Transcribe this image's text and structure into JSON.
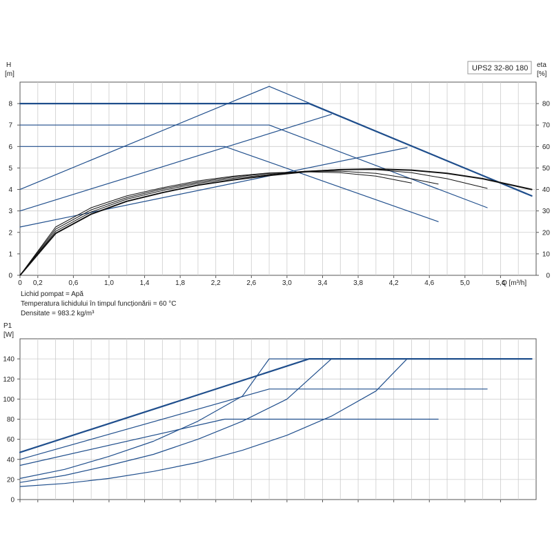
{
  "model": "UPS2 32-80 180",
  "fluid_info": [
    "Lichid pompat = Apă",
    "Temperatura lichidului în timpul funcționării = 60 °C",
    "Densitate = 983.2 kg/m³"
  ],
  "colors": {
    "blue": "#1f4e8c",
    "black": "#111111",
    "grid": "#cccccc",
    "axis": "#555555"
  },
  "chart_data": [
    {
      "type": "line",
      "title": "",
      "xlabel": "Q [m³/h]",
      "ylabel": "H [m]",
      "ylabel_parts": [
        "H",
        "[m]"
      ],
      "y2label": "eta [%]",
      "y2label_parts": [
        "eta",
        "[%]"
      ],
      "xlim": [
        0,
        5.8
      ],
      "ylim": [
        0,
        9
      ],
      "y2lim": [
        0,
        90
      ],
      "x_ticks": [
        "0",
        "0,2",
        "0,6",
        "1,0",
        "1,4",
        "1,8",
        "2,2",
        "2,6",
        "3,0",
        "3,4",
        "3,8",
        "4,2",
        "4,6",
        "5,0",
        "5,4"
      ],
      "x_tick_values": [
        0,
        0.2,
        0.6,
        1.0,
        1.4,
        1.8,
        2.2,
        2.6,
        3.0,
        3.4,
        3.8,
        4.2,
        4.6,
        5.0,
        5.4
      ],
      "y_ticks": [
        0,
        1,
        2,
        3,
        4,
        5,
        6,
        7,
        8
      ],
      "y2_ticks": [
        0,
        10,
        20,
        30,
        40,
        50,
        60,
        70,
        80
      ],
      "grid": true,
      "series": [
        {
          "color": "blue",
          "width": 2.2,
          "x": [
            0,
            3.25,
            5.75
          ],
          "y": [
            8,
            8,
            3.7
          ]
        },
        {
          "color": "blue",
          "width": 1.2,
          "x": [
            0,
            2.8,
            5.25
          ],
          "y": [
            7,
            7,
            3.15
          ]
        },
        {
          "color": "blue",
          "width": 1.2,
          "x": [
            0,
            2.3,
            4.7
          ],
          "y": [
            6,
            6,
            2.5
          ]
        },
        {
          "color": "blue",
          "width": 1.2,
          "x": [
            0,
            2.8,
            5.75
          ],
          "y": [
            4,
            8.8,
            3.7
          ]
        },
        {
          "color": "blue",
          "width": 1.2,
          "x": [
            0,
            3.5
          ],
          "y": [
            3,
            7.5
          ]
        },
        {
          "color": "blue",
          "width": 1.2,
          "x": [
            0,
            4.35
          ],
          "y": [
            2.25,
            5.95
          ]
        },
        {
          "color": "black",
          "width": 2.0,
          "x": [
            0,
            0.4,
            0.8,
            1.2,
            1.6,
            2.0,
            2.4,
            2.8,
            3.2,
            3.6,
            4.0,
            4.4,
            4.8,
            5.2,
            5.75
          ],
          "y": [
            0,
            1.95,
            2.85,
            3.45,
            3.85,
            4.2,
            4.45,
            4.65,
            4.82,
            4.92,
            4.95,
            4.9,
            4.75,
            4.5,
            4.0
          ]
        },
        {
          "color": "black",
          "width": 1.0,
          "x": [
            0,
            0.4,
            0.8,
            1.2,
            1.6,
            2.0,
            2.4,
            2.8,
            3.2,
            3.6,
            4.0,
            4.4,
            4.8,
            5.25
          ],
          "y": [
            0,
            2.05,
            2.95,
            3.55,
            3.95,
            4.28,
            4.52,
            4.7,
            4.85,
            4.93,
            4.92,
            4.78,
            4.5,
            4.05
          ]
        },
        {
          "color": "black",
          "width": 1.0,
          "x": [
            0,
            0.4,
            0.8,
            1.2,
            1.6,
            2.0,
            2.4,
            2.8,
            3.2,
            3.6,
            4.0,
            4.4,
            4.7
          ],
          "y": [
            0,
            2.15,
            3.05,
            3.62,
            4.02,
            4.34,
            4.58,
            4.75,
            4.84,
            4.85,
            4.75,
            4.5,
            4.25
          ]
        },
        {
          "color": "black",
          "width": 1.0,
          "x": [
            0,
            0.4,
            0.8,
            1.2,
            1.6,
            2.0,
            2.4,
            2.8,
            3.2,
            3.6,
            4.0,
            4.4
          ],
          "y": [
            0,
            2.25,
            3.15,
            3.7,
            4.08,
            4.4,
            4.62,
            4.77,
            4.82,
            4.78,
            4.62,
            4.3
          ]
        }
      ]
    },
    {
      "type": "line",
      "title": "",
      "xlabel": "",
      "ylabel": "P1 [W]",
      "ylabel_parts": [
        "P1",
        "[W]"
      ],
      "xlim": [
        0,
        5.8
      ],
      "ylim": [
        0,
        160
      ],
      "x_tick_values": [
        0,
        0.2,
        0.6,
        1.0,
        1.4,
        1.8,
        2.2,
        2.6,
        3.0,
        3.4,
        3.8,
        4.2,
        4.6,
        5.0,
        5.4
      ],
      "y_ticks": [
        0,
        20,
        40,
        60,
        80,
        100,
        120,
        140
      ],
      "grid": true,
      "series": [
        {
          "color": "blue",
          "width": 2.2,
          "x": [
            0,
            3.25,
            5.75
          ],
          "y": [
            47,
            140,
            140
          ]
        },
        {
          "color": "blue",
          "width": 1.2,
          "x": [
            0,
            2.8,
            5.25
          ],
          "y": [
            40,
            110,
            110
          ]
        },
        {
          "color": "blue",
          "width": 1.2,
          "x": [
            0,
            2.3,
            4.7
          ],
          "y": [
            34,
            80,
            80
          ]
        },
        {
          "color": "blue",
          "width": 1.2,
          "x": [
            0,
            0.5,
            1.0,
            1.5,
            2.0,
            2.5,
            2.8,
            5.75
          ],
          "y": [
            21,
            30,
            43,
            58,
            78,
            103,
            140,
            140
          ]
        },
        {
          "color": "blue",
          "width": 1.2,
          "x": [
            0,
            0.5,
            1.0,
            1.5,
            2.0,
            2.5,
            3.0,
            3.5
          ],
          "y": [
            17,
            24,
            34,
            45,
            60,
            78,
            100,
            140
          ]
        },
        {
          "color": "blue",
          "width": 1.2,
          "x": [
            0,
            0.5,
            1.0,
            1.5,
            2.0,
            2.5,
            3.0,
            3.5,
            4.0,
            4.35
          ],
          "y": [
            13,
            16,
            21,
            28,
            37,
            49,
            64,
            83,
            108,
            140
          ]
        }
      ]
    }
  ]
}
